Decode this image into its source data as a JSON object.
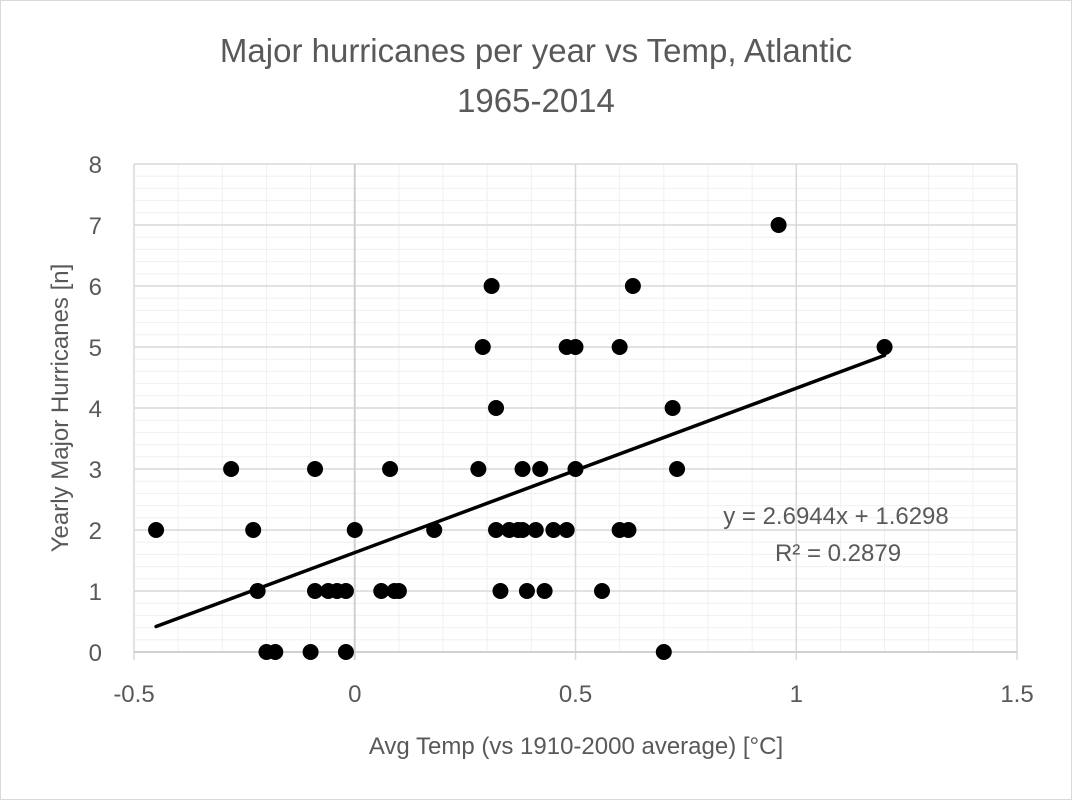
{
  "chart_data": {
    "type": "scatter",
    "title_lines": [
      "Major hurricanes per year vs Temp, Atlantic",
      "1965-2014"
    ],
    "xlabel": "Avg Temp (vs 1910-2000 average) [°C]",
    "ylabel": "Yearly Major Hurricanes [n]",
    "xlim": [
      -0.5,
      1.5
    ],
    "ylim": [
      0,
      8
    ],
    "x_major_ticks": [
      -0.5,
      0,
      0.5,
      1,
      1.5
    ],
    "x_tick_labels": [
      "-0.5",
      "0",
      "0.5",
      "1",
      "1.5"
    ],
    "y_major_ticks": [
      0,
      1,
      2,
      3,
      4,
      5,
      6,
      7,
      8
    ],
    "y_tick_labels": [
      "0",
      "1",
      "2",
      "3",
      "4",
      "5",
      "6",
      "7",
      "8"
    ],
    "grid": true,
    "minor_grid": true,
    "point_color": "#000000",
    "points": [
      {
        "x": -0.45,
        "y": 2
      },
      {
        "x": -0.28,
        "y": 3
      },
      {
        "x": -0.23,
        "y": 2
      },
      {
        "x": -0.22,
        "y": 1
      },
      {
        "x": -0.2,
        "y": 0
      },
      {
        "x": -0.18,
        "y": 0
      },
      {
        "x": -0.1,
        "y": 0
      },
      {
        "x": -0.09,
        "y": 3
      },
      {
        "x": -0.09,
        "y": 1
      },
      {
        "x": -0.06,
        "y": 1
      },
      {
        "x": -0.04,
        "y": 1
      },
      {
        "x": -0.02,
        "y": 1
      },
      {
        "x": -0.02,
        "y": 0
      },
      {
        "x": 0.0,
        "y": 2
      },
      {
        "x": 0.06,
        "y": 1
      },
      {
        "x": 0.08,
        "y": 3
      },
      {
        "x": 0.09,
        "y": 1
      },
      {
        "x": 0.1,
        "y": 1
      },
      {
        "x": 0.18,
        "y": 2
      },
      {
        "x": 0.28,
        "y": 3
      },
      {
        "x": 0.29,
        "y": 5
      },
      {
        "x": 0.31,
        "y": 6
      },
      {
        "x": 0.32,
        "y": 4
      },
      {
        "x": 0.32,
        "y": 2
      },
      {
        "x": 0.33,
        "y": 1
      },
      {
        "x": 0.35,
        "y": 2
      },
      {
        "x": 0.37,
        "y": 2
      },
      {
        "x": 0.38,
        "y": 2
      },
      {
        "x": 0.38,
        "y": 3
      },
      {
        "x": 0.39,
        "y": 1
      },
      {
        "x": 0.41,
        "y": 2
      },
      {
        "x": 0.42,
        "y": 3
      },
      {
        "x": 0.43,
        "y": 1
      },
      {
        "x": 0.45,
        "y": 2
      },
      {
        "x": 0.48,
        "y": 5
      },
      {
        "x": 0.48,
        "y": 2
      },
      {
        "x": 0.5,
        "y": 5
      },
      {
        "x": 0.5,
        "y": 3
      },
      {
        "x": 0.56,
        "y": 1
      },
      {
        "x": 0.6,
        "y": 5
      },
      {
        "x": 0.6,
        "y": 2
      },
      {
        "x": 0.62,
        "y": 2
      },
      {
        "x": 0.63,
        "y": 6
      },
      {
        "x": 0.7,
        "y": 0
      },
      {
        "x": 0.72,
        "y": 4
      },
      {
        "x": 0.73,
        "y": 3
      },
      {
        "x": 0.96,
        "y": 7
      },
      {
        "x": 1.2,
        "y": 5
      }
    ],
    "trendline": {
      "type": "linear",
      "slope": 2.6944,
      "intercept": 1.6298,
      "x_range": [
        -0.45,
        1.2
      ],
      "equation_label": "y = 2.6944x + 1.6298",
      "r2_label": "R² = 0.2879"
    }
  }
}
